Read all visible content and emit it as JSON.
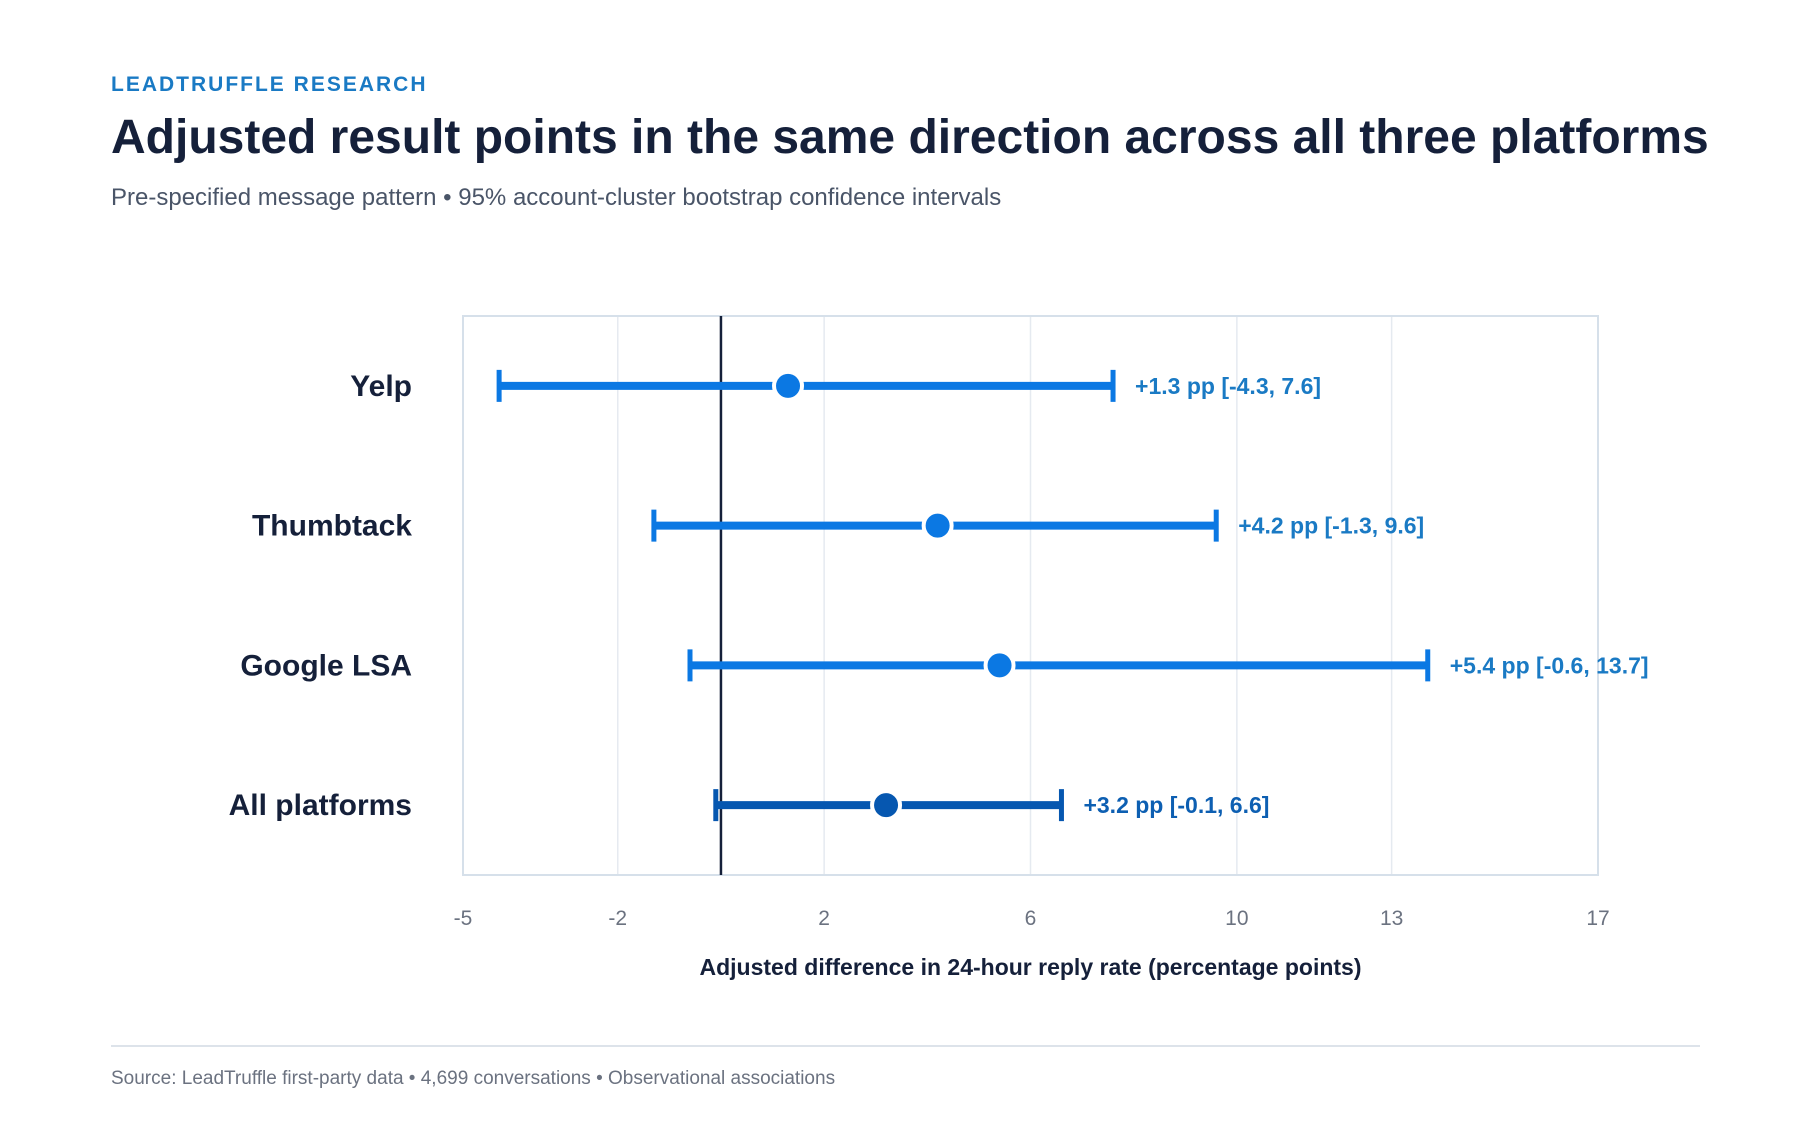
{
  "header": {
    "eyebrow": "LEADTRUFFLE RESEARCH",
    "title": "Adjusted result points in the same direction across all three platforms",
    "subtitle": "Pre-specified message pattern • 95% account-cluster bootstrap confidence intervals"
  },
  "footer": {
    "source": "Source: LeadTruffle first-party data • 4,699 conversations • Observational associations"
  },
  "colors": {
    "platform": "#0b78e3",
    "overall": "#0657b0",
    "label_text": "#1a7ac4",
    "overall_label_text": "#0d5fb2",
    "zero_line": "#15203a",
    "grid": "#e5eaf0",
    "frame": "#d6e0ea"
  },
  "chart_data": {
    "type": "forest",
    "title": "",
    "xlabel": "Adjusted difference in 24-hour reply rate (percentage points)",
    "ylabel": "",
    "xlim": [
      -5,
      17
    ],
    "x_tick_labels": [
      "-5",
      "-2",
      "2",
      "6",
      "10",
      "13",
      "17"
    ],
    "grid": true,
    "reference_line": 0,
    "rows": [
      {
        "label": "Yelp",
        "estimate": 1.3,
        "lower": -4.3,
        "upper": 7.6,
        "annotation": "+1.3 pp [-4.3, 7.6]",
        "overall": false
      },
      {
        "label": "Thumbtack",
        "estimate": 4.2,
        "lower": -1.3,
        "upper": 9.6,
        "annotation": "+4.2 pp [-1.3, 9.6]",
        "overall": false
      },
      {
        "label": "Google LSA",
        "estimate": 5.4,
        "lower": -0.6,
        "upper": 13.7,
        "annotation": "+5.4 pp [-0.6, 13.7]",
        "overall": false
      },
      {
        "label": "All platforms",
        "estimate": 3.2,
        "lower": -0.1,
        "upper": 6.6,
        "annotation": "+3.2 pp [-0.1, 6.6]",
        "overall": true
      }
    ]
  }
}
